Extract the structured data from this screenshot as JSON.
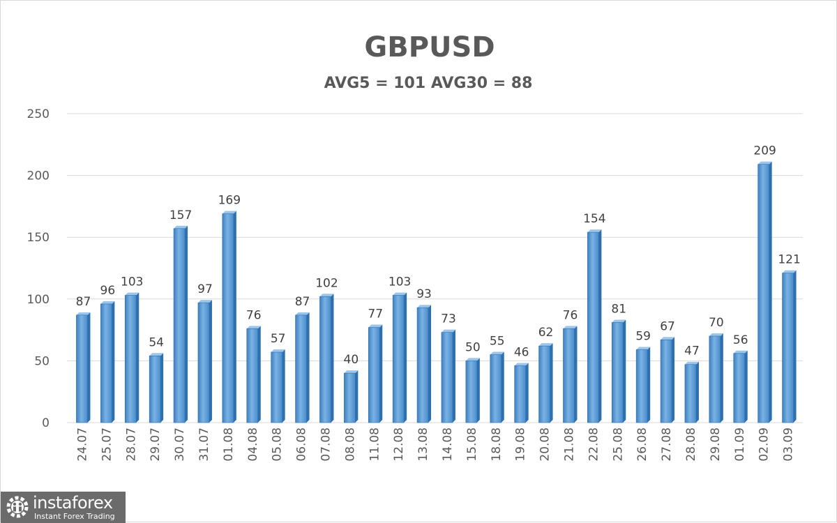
{
  "chart_data": {
    "type": "bar",
    "title": "GBPUSD",
    "subtitle": "AVG5 = 101 AVG30 = 88",
    "categories": [
      "24.07",
      "25.07",
      "28.07",
      "29.07",
      "30.07",
      "31.07",
      "01.08",
      "04.08",
      "05.08",
      "06.08",
      "07.08",
      "08.08",
      "11.08",
      "12.08",
      "13.08",
      "14.08",
      "15.08",
      "18.08",
      "19.08",
      "20.08",
      "21.08",
      "22.08",
      "25.08",
      "26.08",
      "27.08",
      "28.08",
      "29.08",
      "01.09",
      "02.09",
      "03.09"
    ],
    "values": [
      87,
      96,
      103,
      54,
      157,
      97,
      169,
      76,
      57,
      87,
      102,
      40,
      77,
      103,
      93,
      73,
      50,
      55,
      46,
      62,
      76,
      154,
      81,
      59,
      67,
      47,
      70,
      56,
      209,
      121
    ],
    "ylim": [
      0,
      250
    ],
    "yticks": [
      0,
      50,
      100,
      150,
      200,
      250
    ],
    "grid": true,
    "data_labels": true,
    "bar_color": "#5b9bd5",
    "bar_color_dark": "#2e6fad"
  },
  "watermark": {
    "brand": "instaforex",
    "tagline": "Instant Forex Trading"
  }
}
